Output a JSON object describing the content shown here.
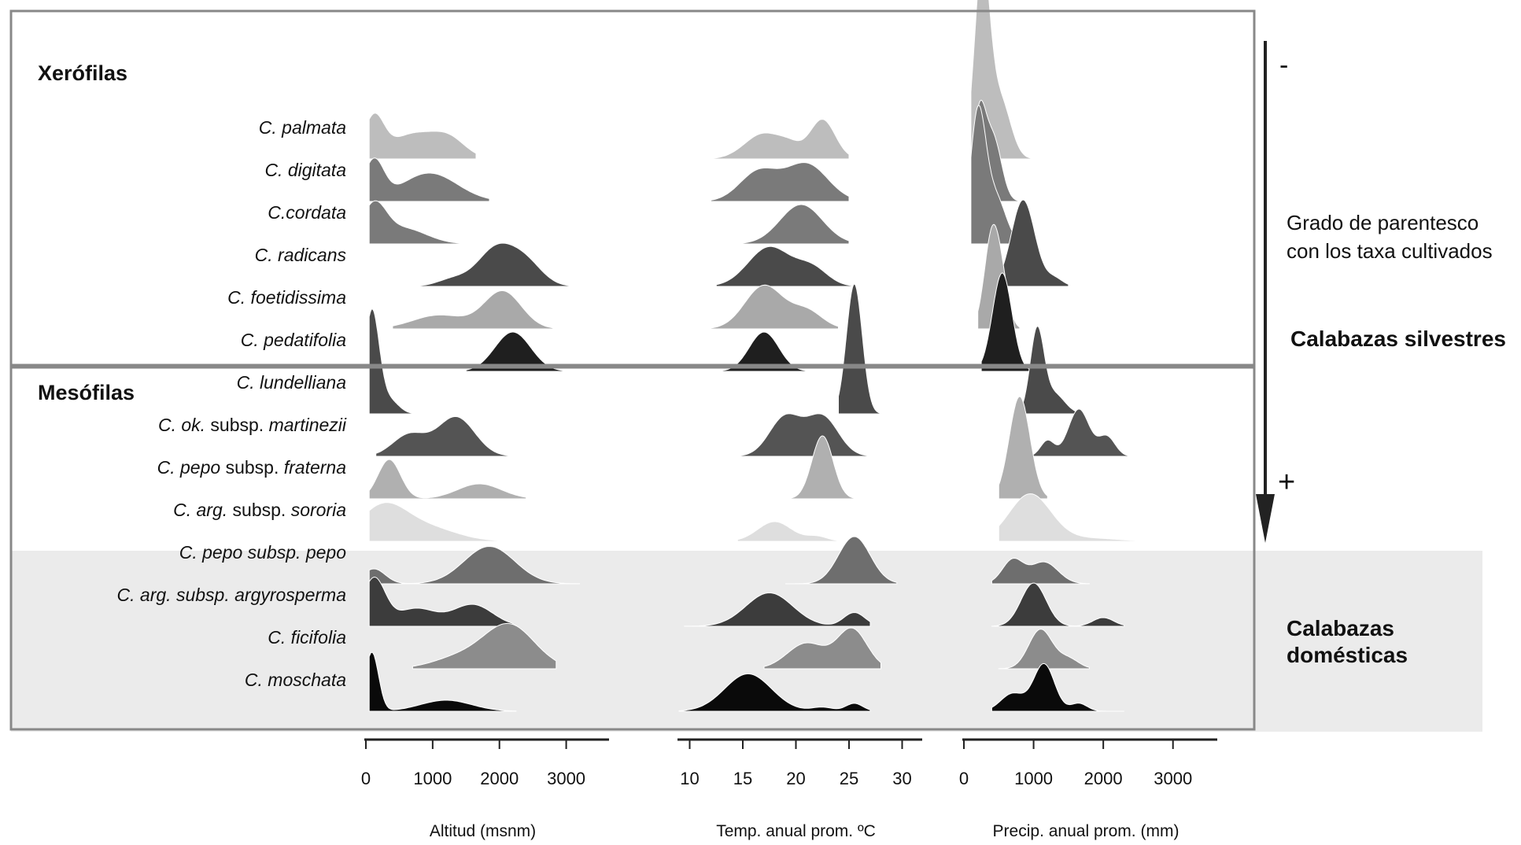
{
  "groups": {
    "xerophytes": "Xerófilas",
    "mesophytes": "Mesófilas"
  },
  "right_annotations": {
    "kinship_line1": "Grado de parentesco",
    "kinship_line2": "con los taxa cultivados",
    "minus": "-",
    "plus": "+",
    "wild": "Calabazas silvestres",
    "domestic_line1": "Calabazas",
    "domestic_line2": "domésticas"
  },
  "species_labels": [
    {
      "parts": [
        {
          "t": "C. palmata",
          "i": true
        }
      ]
    },
    {
      "parts": [
        {
          "t": "C. digitata",
          "i": true
        }
      ]
    },
    {
      "parts": [
        {
          "t": "C.cordata",
          "i": true
        }
      ]
    },
    {
      "parts": [
        {
          "t": "C. radicans",
          "i": true
        }
      ]
    },
    {
      "parts": [
        {
          "t": "C. foetidissima",
          "i": true
        }
      ]
    },
    {
      "parts": [
        {
          "t": "C. pedatifolia",
          "i": true
        }
      ]
    },
    {
      "parts": [
        {
          "t": "C. lundelliana",
          "i": true
        }
      ]
    },
    {
      "parts": [
        {
          "t": "C. ok.",
          "i": true
        },
        {
          "t": " subsp. ",
          "i": false
        },
        {
          "t": "martinezii",
          "i": true
        }
      ]
    },
    {
      "parts": [
        {
          "t": "C. pepo",
          "i": true
        },
        {
          "t": " subsp. ",
          "i": false
        },
        {
          "t": "fraterna",
          "i": true
        }
      ]
    },
    {
      "parts": [
        {
          "t": "C. arg.",
          "i": true
        },
        {
          "t": " subsp. ",
          "i": false
        },
        {
          "t": "sororia",
          "i": true
        }
      ]
    },
    {
      "parts": [
        {
          "t": "C. pepo subsp. pepo",
          "i": true
        }
      ]
    },
    {
      "parts": [
        {
          "t": "C. arg. subsp. argyrosperma",
          "i": true
        }
      ]
    },
    {
      "parts": [
        {
          "t": "C. ficifolia",
          "i": true
        }
      ]
    },
    {
      "parts": [
        {
          "t": "C. moschata",
          "i": true
        }
      ]
    }
  ],
  "chart_data": {
    "type": "area",
    "subtype": "ridgeline density",
    "grid": false,
    "series_colors": [
      "#bdbdbd",
      "#7a7a7a",
      "#7a7a7a",
      "#4a4a4a",
      "#a9a9a9",
      "#1f1f1f",
      "#4a4a4a",
      "#545454",
      "#b0b0b0",
      "#dedede",
      "#6e6e6e",
      "#3c3c3c",
      "#8c8c8c",
      "#0a0a0a"
    ],
    "panels": [
      {
        "xlabel": "Altitud (msnm)",
        "xlim": [
          0,
          3500
        ],
        "ticks": [
          0,
          1000,
          2000,
          3000
        ],
        "tick_labels": [
          "0",
          "1000",
          "2000",
          "3000"
        ],
        "series": [
          {
            "name": "C. palmata",
            "range": [
              50,
              1650
            ],
            "peaks": [
              [
                120,
                1.0,
                150
              ],
              [
                700,
                0.62,
                350
              ],
              [
                1250,
                0.45,
                250
              ]
            ]
          },
          {
            "name": "C. digitata",
            "range": [
              50,
              1850
            ],
            "peaks": [
              [
                120,
                1.0,
                150
              ],
              [
                950,
                0.72,
                420
              ]
            ]
          },
          {
            "name": "C.cordata",
            "range": [
              50,
              1500
            ],
            "peaks": [
              [
                120,
                0.9,
                180
              ],
              [
                550,
                0.4,
                350
              ]
            ]
          },
          {
            "name": "C. radicans",
            "range": [
              700,
              3200
            ],
            "peaks": [
              [
                1300,
                0.18,
                230
              ],
              [
                1950,
                0.95,
                280
              ],
              [
                2400,
                0.55,
                250
              ]
            ]
          },
          {
            "name": "C. foetidissima",
            "range": [
              400,
              2800
            ],
            "peaks": [
              [
                1100,
                0.35,
                400
              ],
              [
                2050,
                0.95,
                280
              ]
            ]
          },
          {
            "name": "C. pedatifolia",
            "range": [
              1500,
              2950
            ],
            "peaks": [
              [
                2200,
                1.0,
                270
              ]
            ]
          },
          {
            "name": "C. lundelliana",
            "range": [
              50,
              700
            ],
            "peaks": [
              [
                90,
                2.6,
                110
              ],
              [
                350,
                0.35,
                140
              ]
            ]
          },
          {
            "name": "C. ok. subsp. martinezii",
            "range": [
              150,
              2500
            ],
            "peaks": [
              [
                650,
                0.55,
                250
              ],
              [
                1350,
                1.0,
                280
              ]
            ]
          },
          {
            "name": "C. pepo subsp. fraterna",
            "range": [
              50,
              2400
            ],
            "peaks": [
              [
                350,
                1.0,
                170
              ],
              [
                1700,
                0.38,
                330
              ]
            ]
          },
          {
            "name": "C. arg. subsp. sororia",
            "range": [
              50,
              2400
            ],
            "peaks": [
              [
                250,
                0.85,
                350
              ],
              [
                900,
                0.35,
                450
              ]
            ]
          },
          {
            "name": "C. pepo subsp. pepo",
            "range": [
              50,
              3200
            ],
            "peaks": [
              [
                120,
                0.38,
                170
              ],
              [
                1850,
                0.95,
                380
              ]
            ]
          },
          {
            "name": "C. arg. subsp. argyrosperma",
            "range": [
              50,
              2200
            ],
            "peaks": [
              [
                120,
                1.2,
                170
              ],
              [
                750,
                0.45,
                300
              ],
              [
                1600,
                0.55,
                300
              ]
            ]
          },
          {
            "name": "C. ficifolia",
            "range": [
              700,
              2850
            ],
            "peaks": [
              [
                2150,
                1.1,
                380
              ],
              [
                1400,
                0.28,
                400
              ]
            ]
          },
          {
            "name": "C. moschata",
            "range": [
              50,
              2250
            ],
            "peaks": [
              [
                90,
                1.5,
                100
              ],
              [
                1200,
                0.28,
                380
              ]
            ]
          }
        ]
      },
      {
        "xlabel": "Temp. anual prom. ºC",
        "xlim": [
          9,
          31
        ],
        "ticks": [
          10,
          15,
          20,
          25,
          30
        ],
        "tick_labels": [
          "10",
          "15",
          "20",
          "25",
          "30"
        ],
        "series": [
          {
            "name": "C. palmata",
            "range": [
              11.5,
              25
            ],
            "peaks": [
              [
                17,
                0.65,
                1.8
              ],
              [
                22.5,
                1.0,
                1.2
              ],
              [
                19.5,
                0.22,
                1.0
              ]
            ]
          },
          {
            "name": "C. digitata",
            "range": [
              12,
              25
            ],
            "peaks": [
              [
                16.5,
                0.75,
                1.8
              ],
              [
                21,
                0.95,
                2.0
              ]
            ]
          },
          {
            "name": "C.cordata",
            "range": [
              15,
              25
            ],
            "peaks": [
              [
                20.5,
                1.0,
                2.0
              ]
            ]
          },
          {
            "name": "C. radicans",
            "range": [
              12.5,
              25.5
            ],
            "peaks": [
              [
                17.5,
                1.0,
                2.0
              ],
              [
                21.5,
                0.45,
                1.5
              ]
            ]
          },
          {
            "name": "C. foetidissima",
            "range": [
              12,
              24
            ],
            "peaks": [
              [
                17,
                1.1,
                1.8
              ],
              [
                21,
                0.45,
                1.5
              ]
            ]
          },
          {
            "name": "C. pedatifolia",
            "range": [
              11.5,
              23
            ],
            "peaks": [
              [
                17,
                1.0,
                1.4
              ]
            ]
          },
          {
            "name": "C. lundelliana",
            "range": [
              24,
              29
            ],
            "peaks": [
              [
                25.5,
                3.3,
                0.75
              ]
            ]
          },
          {
            "name": "C. ok. subsp. martinezii",
            "range": [
              14.5,
              27
            ],
            "peaks": [
              [
                19,
                1.0,
                1.5
              ],
              [
                22.5,
                1.0,
                1.5
              ]
            ]
          },
          {
            "name": "C. pepo subsp. fraterna",
            "range": [
              18.5,
              25.5
            ],
            "peaks": [
              [
                22.5,
                1.6,
                1.0
              ]
            ]
          },
          {
            "name": "C. arg. subsp. sororia",
            "range": [
              14.5,
              24
            ],
            "peaks": [
              [
                18,
                0.5,
                1.6
              ],
              [
                22,
                0.12,
                1.0
              ]
            ]
          },
          {
            "name": "C. pepo subsp. pepo",
            "range": [
              19,
              29.5
            ],
            "peaks": [
              [
                25.5,
                1.2,
                1.5
              ]
            ]
          },
          {
            "name": "C. arg. subsp. argyrosperma",
            "range": [
              9.5,
              27
            ],
            "peaks": [
              [
                17.5,
                0.85,
                2.2
              ],
              [
                25.5,
                0.35,
                1.0
              ]
            ]
          },
          {
            "name": "C. ficifolia",
            "range": [
              17,
              28
            ],
            "peaks": [
              [
                21,
                0.65,
                1.8
              ],
              [
                25.3,
                1.0,
                1.4
              ]
            ]
          },
          {
            "name": "C. moschata",
            "range": [
              9,
              27
            ],
            "peaks": [
              [
                15.5,
                0.95,
                2.2
              ],
              [
                22.5,
                0.1,
                1.0
              ],
              [
                25.5,
                0.2,
                0.8
              ]
            ]
          }
        ]
      },
      {
        "xlabel": "Precip. anual prom. (mm)",
        "xlim": [
          0,
          3500
        ],
        "ticks": [
          0,
          1000,
          2000,
          3000
        ],
        "tick_labels": [
          "0",
          "1000",
          "2000",
          "3000"
        ],
        "series": [
          {
            "name": "C. palmata",
            "range": [
              100,
              1000
            ],
            "peaks": [
              [
                260,
                4.8,
                110
              ],
              [
                520,
                1.5,
                150
              ]
            ]
          },
          {
            "name": "C. digitata",
            "range": [
              100,
              800
            ],
            "peaks": [
              [
                220,
                2.1,
                90
              ],
              [
                420,
                1.6,
                120
              ]
            ]
          },
          {
            "name": "C.cordata",
            "range": [
              100,
              900
            ],
            "peaks": [
              [
                200,
                3.2,
                110
              ],
              [
                450,
                1.2,
                150
              ]
            ]
          },
          {
            "name": "C. radicans",
            "range": [
              300,
              1500
            ],
            "peaks": [
              [
                850,
                2.2,
                170
              ],
              [
                1300,
                0.2,
                120
              ]
            ]
          },
          {
            "name": "C. foetidissima",
            "range": [
              200,
              800
            ],
            "peaks": [
              [
                400,
                2.3,
                110
              ],
              [
                550,
                0.9,
                100
              ]
            ]
          },
          {
            "name": "C. pedatifolia",
            "range": [
              250,
              1000
            ],
            "peaks": [
              [
                550,
                2.5,
                140
              ]
            ]
          },
          {
            "name": "C. lundelliana",
            "range": [
              800,
              2000
            ],
            "peaks": [
              [
                1050,
                2.1,
                100
              ],
              [
                1300,
                0.5,
                150
              ]
            ]
          },
          {
            "name": "C. ok. subsp. martinezii",
            "range": [
              900,
              2500
            ],
            "peaks": [
              [
                1200,
                0.4,
                100
              ],
              [
                1650,
                1.2,
                150
              ],
              [
                2050,
                0.5,
                120
              ]
            ]
          },
          {
            "name": "C. pepo subsp. fraterna",
            "range": [
              500,
              1200
            ],
            "peaks": [
              [
                800,
                2.6,
                150
              ]
            ]
          },
          {
            "name": "C. arg. subsp. sororia",
            "range": [
              500,
              2800
            ],
            "peaks": [
              [
                950,
                1.2,
                300
              ],
              [
                1800,
                0.08,
                400
              ]
            ]
          },
          {
            "name": "C. pepo subsp. pepo",
            "range": [
              400,
              1800
            ],
            "peaks": [
              [
                700,
                0.6,
                150
              ],
              [
                1150,
                0.55,
                200
              ]
            ]
          },
          {
            "name": "C. arg. subsp. argyrosperma",
            "range": [
              400,
              2300
            ],
            "peaks": [
              [
                1000,
                1.1,
                180
              ],
              [
                2000,
                0.22,
                150
              ]
            ]
          },
          {
            "name": "C. ficifolia",
            "range": [
              500,
              1800
            ],
            "peaks": [
              [
                1100,
                1.0,
                170
              ],
              [
                1500,
                0.25,
                150
              ]
            ]
          },
          {
            "name": "C. moschata",
            "range": [
              400,
              2300
            ],
            "peaks": [
              [
                700,
                0.45,
                170
              ],
              [
                1150,
                1.2,
                150
              ],
              [
                1650,
                0.2,
                120
              ]
            ]
          }
        ]
      }
    ]
  }
}
